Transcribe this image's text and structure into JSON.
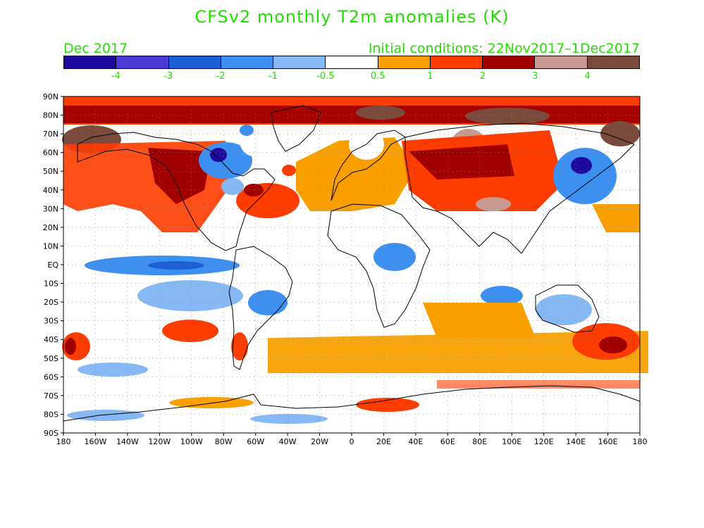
{
  "title": "CFSv2 monthly T2m anomalies (K)",
  "month": "Dec 2017",
  "initial_conditions": "Initial conditions: 22Nov2017–1Dec2017",
  "text_color": "#22dd00",
  "colorbar": {
    "colors": [
      "#1e0a9e",
      "#4b3ad6",
      "#1c5ed8",
      "#3d8ff0",
      "#86b8f4",
      "#ffffff",
      "#f9a000",
      "#ff3c00",
      "#a00000",
      "#c99a92",
      "#7a4a3c"
    ],
    "labels": [
      "-4",
      "-3",
      "-2",
      "-1",
      "-0.5",
      "0.5",
      "1",
      "2",
      "3",
      "4"
    ]
  },
  "map": {
    "lat_labels": [
      "90N",
      "80N",
      "70N",
      "60N",
      "50N",
      "40N",
      "30N",
      "20N",
      "10N",
      "EQ",
      "10S",
      "20S",
      "30S",
      "40S",
      "50S",
      "60S",
      "70S",
      "80S",
      "90S"
    ],
    "lon_labels": [
      "180",
      "160W",
      "140W",
      "120W",
      "100W",
      "80W",
      "60W",
      "40W",
      "20W",
      "0",
      "20E",
      "40E",
      "60E",
      "80E",
      "100E",
      "120E",
      "140E",
      "160E",
      "180"
    ]
  }
}
